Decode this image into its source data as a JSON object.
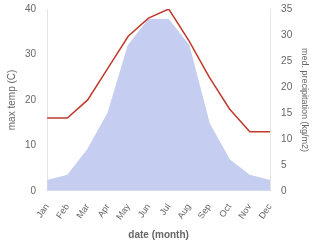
{
  "chart_data": {
    "type": "line",
    "xlabel": "date (month)",
    "ylabel": "max temp (C)",
    "y2label": "med. precipitation (kg/m2)",
    "categories": [
      "Jan",
      "Feb",
      "Mar",
      "Apr",
      "May",
      "Jun",
      "Jul",
      "Aug",
      "Sep",
      "Oct",
      "Nov",
      "Dec"
    ],
    "series": [
      {
        "type": "area",
        "axis": "y2",
        "color": "#c5cef0",
        "values": [
          2,
          3,
          8,
          15,
          28,
          33,
          33,
          28,
          13,
          6,
          3,
          2
        ]
      },
      {
        "type": "line",
        "color": "#c0392b",
        "values": [
          16,
          16,
          20,
          27,
          34,
          38,
          40,
          33,
          25,
          18,
          13,
          13
        ]
      }
    ],
    "ylim": [
      0,
      40
    ],
    "yticks": [
      0,
      10,
      20,
      30,
      40
    ],
    "y2lim": [
      0,
      35
    ],
    "y2ticks": [
      0,
      5,
      10,
      15,
      20,
      25,
      30,
      35
    ],
    "grid": false
  }
}
